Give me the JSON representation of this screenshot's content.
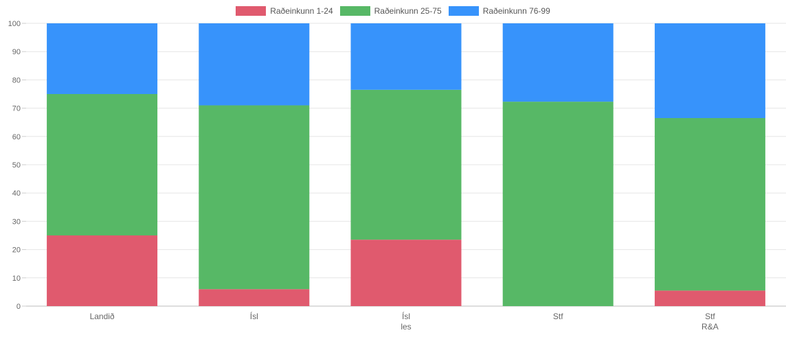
{
  "chart_data": {
    "type": "bar",
    "stacked": true,
    "categories": [
      [
        "Landið"
      ],
      [
        "Ísl"
      ],
      [
        "Ísl",
        "les"
      ],
      [
        "Stf"
      ],
      [
        "Stf",
        "R&A"
      ]
    ],
    "series": [
      {
        "name": "Raðeinkunn 1-24",
        "color": "#e05a6e",
        "values": [
          25,
          6,
          23.5,
          0,
          5.5
        ]
      },
      {
        "name": "Raðeinkunn 25-75",
        "color": "#57b866",
        "values": [
          50,
          65,
          53,
          72.3,
          61
        ]
      },
      {
        "name": "Raðeinkunn 76-99",
        "color": "#3793fb",
        "values": [
          25,
          29,
          23.5,
          27.7,
          33.5
        ]
      }
    ],
    "ylim": [
      0,
      100
    ],
    "yticks": [
      0,
      10,
      20,
      30,
      40,
      50,
      60,
      70,
      80,
      90,
      100
    ],
    "grid": true,
    "legend_position": "top-center",
    "title": "",
    "xlabel": "",
    "ylabel": ""
  }
}
